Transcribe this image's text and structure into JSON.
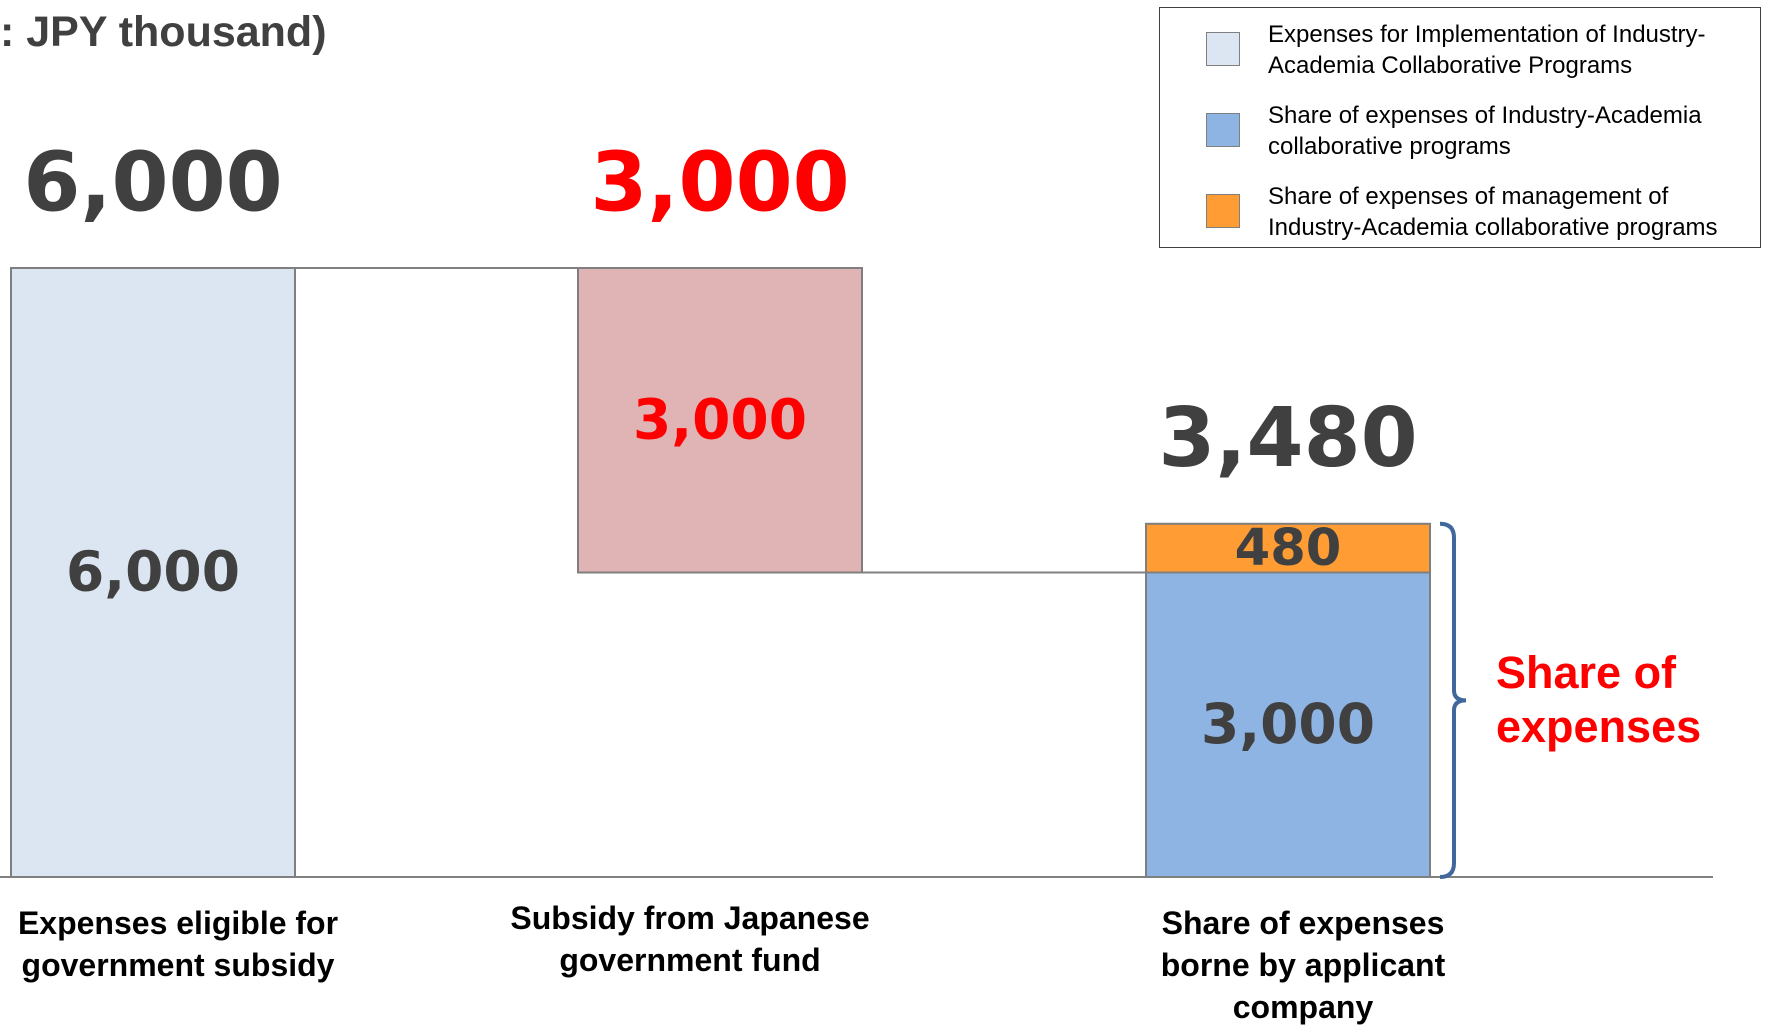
{
  "chart_data": {
    "type": "waterfall",
    "title": ": JPY thousand)",
    "categories": [
      "Expenses eligible for government subsidy",
      "Subsidy from Japanese government fund",
      "Share of expenses borne by applicant company"
    ],
    "ylim": [
      0,
      6000
    ],
    "series": [
      {
        "name": "Expenses for Implementation of Industry-Academia Collaborative Programs",
        "color": "#dce6f2",
        "values": [
          6000,
          null,
          null
        ],
        "value_labels": [
          "6,000",
          null,
          null
        ],
        "label_color": "#404040"
      },
      {
        "name": "Share of expenses of Industry-Academia collaborative programs",
        "color": "#8eb4e3",
        "values": [
          null,
          null,
          3000
        ],
        "value_labels": [
          null,
          null,
          "3,000"
        ],
        "label_color": "#404040"
      },
      {
        "name": "Share of expenses of management of Industry-Academia collaborative programs",
        "color": "#ff9c33",
        "values": [
          null,
          null,
          480
        ],
        "value_labels": [
          null,
          null,
          "480"
        ],
        "label_color": "#404040"
      }
    ],
    "decrease": {
      "color": "#e0b4b4",
      "values": [
        null,
        3000,
        null
      ],
      "value_labels": [
        null,
        "3,000",
        null
      ],
      "label_color": "#ff0000"
    },
    "totals": [
      6000,
      3000,
      3480
    ],
    "total_labels": [
      "6,000",
      "3,000",
      "3,480"
    ],
    "total_colors": [
      "#404040",
      "#ff0000",
      "#404040"
    ],
    "annotation": "Share of expenses",
    "annotation_color": "#ff0000",
    "bracket_color": "#41689c",
    "legend": "upper right"
  }
}
